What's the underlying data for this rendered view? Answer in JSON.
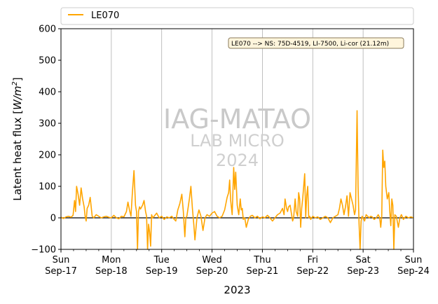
{
  "chart_data": {
    "type": "line",
    "title": "",
    "xlabel": "2023",
    "ylabel": "Latent heat flux [W/m²]",
    "ylabel_main": "Latent heat flux [",
    "ylabel_unit_w": "W/m",
    "ylabel_unit_sup": "2",
    "ylabel_close": "]",
    "ylim": [
      -100,
      600
    ],
    "yticks": [
      -100,
      0,
      100,
      200,
      300,
      400,
      500,
      600
    ],
    "xlim": [
      0,
      7
    ],
    "xticks": [
      {
        "x": 0,
        "day": "Sun",
        "date": "Sep-17"
      },
      {
        "x": 1,
        "day": "Mon",
        "date": "Sep-18"
      },
      {
        "x": 2,
        "day": "Tue",
        "date": "Sep-19"
      },
      {
        "x": 3,
        "day": "Wed",
        "date": "Sep-20"
      },
      {
        "x": 4,
        "day": "Thu",
        "date": "Sep-21"
      },
      {
        "x": 5,
        "day": "Fri",
        "date": "Sep-22"
      },
      {
        "x": 6,
        "day": "Sat",
        "date": "Sep-23"
      },
      {
        "x": 7,
        "day": "Sun",
        "date": "Sep-24"
      }
    ],
    "grid": "vertical",
    "legend_position": "top",
    "series": [
      {
        "name": "LE070",
        "color": "#ffa500",
        "points": [
          [
            0.0,
            2
          ],
          [
            0.05,
            -2
          ],
          [
            0.1,
            3
          ],
          [
            0.15,
            5
          ],
          [
            0.2,
            2
          ],
          [
            0.24,
            8
          ],
          [
            0.27,
            55
          ],
          [
            0.29,
            20
          ],
          [
            0.31,
            100
          ],
          [
            0.34,
            75
          ],
          [
            0.37,
            40
          ],
          [
            0.4,
            95
          ],
          [
            0.43,
            60
          ],
          [
            0.46,
            35
          ],
          [
            0.48,
            5
          ],
          [
            0.5,
            -10
          ],
          [
            0.52,
            30
          ],
          [
            0.55,
            40
          ],
          [
            0.58,
            65
          ],
          [
            0.62,
            5
          ],
          [
            0.65,
            0
          ],
          [
            0.7,
            10
          ],
          [
            0.75,
            5
          ],
          [
            0.8,
            0
          ],
          [
            0.85,
            3
          ],
          [
            0.9,
            5
          ],
          [
            0.95,
            2
          ],
          [
            1.0,
            0
          ],
          [
            1.05,
            8
          ],
          [
            1.1,
            0
          ],
          [
            1.15,
            -3
          ],
          [
            1.2,
            5
          ],
          [
            1.25,
            3
          ],
          [
            1.3,
            20
          ],
          [
            1.33,
            50
          ],
          [
            1.36,
            25
          ],
          [
            1.39,
            5
          ],
          [
            1.42,
            85
          ],
          [
            1.45,
            150
          ],
          [
            1.48,
            40
          ],
          [
            1.5,
            20
          ],
          [
            1.52,
            -100
          ],
          [
            1.54,
            20
          ],
          [
            1.56,
            35
          ],
          [
            1.58,
            28
          ],
          [
            1.62,
            40
          ],
          [
            1.65,
            55
          ],
          [
            1.68,
            20
          ],
          [
            1.7,
            5
          ],
          [
            1.72,
            -100
          ],
          [
            1.74,
            -20
          ],
          [
            1.76,
            -45
          ],
          [
            1.78,
            -90
          ],
          [
            1.8,
            10
          ],
          [
            1.82,
            0
          ],
          [
            1.85,
            5
          ],
          [
            1.9,
            15
          ],
          [
            1.95,
            0
          ],
          [
            2.0,
            5
          ],
          [
            2.05,
            -5
          ],
          [
            2.1,
            3
          ],
          [
            2.15,
            0
          ],
          [
            2.2,
            5
          ],
          [
            2.25,
            -5
          ],
          [
            2.28,
            -10
          ],
          [
            2.32,
            25
          ],
          [
            2.36,
            45
          ],
          [
            2.4,
            75
          ],
          [
            2.43,
            20
          ],
          [
            2.46,
            -60
          ],
          [
            2.48,
            0
          ],
          [
            2.5,
            5
          ],
          [
            2.55,
            60
          ],
          [
            2.58,
            100
          ],
          [
            2.61,
            30
          ],
          [
            2.64,
            -25
          ],
          [
            2.66,
            -70
          ],
          [
            2.7,
            0
          ],
          [
            2.74,
            25
          ],
          [
            2.78,
            5
          ],
          [
            2.82,
            -40
          ],
          [
            2.86,
            0
          ],
          [
            2.9,
            10
          ],
          [
            2.95,
            5
          ],
          [
            3.0,
            15
          ],
          [
            3.05,
            20
          ],
          [
            3.1,
            5
          ],
          [
            3.15,
            0
          ],
          [
            3.2,
            5
          ],
          [
            3.25,
            25
          ],
          [
            3.3,
            65
          ],
          [
            3.33,
            80
          ],
          [
            3.35,
            120
          ],
          [
            3.37,
            55
          ],
          [
            3.4,
            10
          ],
          [
            3.43,
            160
          ],
          [
            3.45,
            90
          ],
          [
            3.47,
            145
          ],
          [
            3.5,
            40
          ],
          [
            3.53,
            10
          ],
          [
            3.56,
            60
          ],
          [
            3.58,
            25
          ],
          [
            3.6,
            30
          ],
          [
            3.62,
            -5
          ],
          [
            3.65,
            0
          ],
          [
            3.68,
            -30
          ],
          [
            3.72,
            -5
          ],
          [
            3.76,
            5
          ],
          [
            3.8,
            8
          ],
          [
            3.85,
            0
          ],
          [
            3.9,
            5
          ],
          [
            3.95,
            -3
          ],
          [
            4.0,
            3
          ],
          [
            4.05,
            0
          ],
          [
            4.1,
            8
          ],
          [
            4.15,
            0
          ],
          [
            4.2,
            -10
          ],
          [
            4.25,
            0
          ],
          [
            4.3,
            10
          ],
          [
            4.35,
            15
          ],
          [
            4.4,
            30
          ],
          [
            4.43,
            10
          ],
          [
            4.45,
            60
          ],
          [
            4.48,
            30
          ],
          [
            4.5,
            20
          ],
          [
            4.52,
            35
          ],
          [
            4.55,
            40
          ],
          [
            4.58,
            10
          ],
          [
            4.6,
            -10
          ],
          [
            4.62,
            0
          ],
          [
            4.65,
            60
          ],
          [
            4.67,
            20
          ],
          [
            4.7,
            5
          ],
          [
            4.72,
            80
          ],
          [
            4.74,
            60
          ],
          [
            4.76,
            -30
          ],
          [
            4.78,
            30
          ],
          [
            4.8,
            60
          ],
          [
            4.82,
            100
          ],
          [
            4.84,
            140
          ],
          [
            4.86,
            0
          ],
          [
            4.88,
            70
          ],
          [
            4.9,
            100
          ],
          [
            4.92,
            0
          ],
          [
            4.94,
            5
          ],
          [
            4.96,
            -5
          ],
          [
            5.0,
            5
          ],
          [
            5.05,
            0
          ],
          [
            5.1,
            3
          ],
          [
            5.15,
            -5
          ],
          [
            5.2,
            0
          ],
          [
            5.25,
            5
          ],
          [
            5.3,
            0
          ],
          [
            5.35,
            -15
          ],
          [
            5.4,
            0
          ],
          [
            5.45,
            5
          ],
          [
            5.5,
            10
          ],
          [
            5.53,
            30
          ],
          [
            5.56,
            60
          ],
          [
            5.59,
            40
          ],
          [
            5.62,
            10
          ],
          [
            5.65,
            35
          ],
          [
            5.68,
            70
          ],
          [
            5.71,
            5
          ],
          [
            5.74,
            80
          ],
          [
            5.77,
            60
          ],
          [
            5.8,
            40
          ],
          [
            5.83,
            10
          ],
          [
            5.85,
            25
          ],
          [
            5.88,
            340
          ],
          [
            5.9,
            100
          ],
          [
            5.92,
            -20
          ],
          [
            5.94,
            -100
          ],
          [
            5.96,
            -10
          ],
          [
            5.98,
            5
          ],
          [
            6.0,
            0
          ],
          [
            6.03,
            -10
          ],
          [
            6.06,
            10
          ],
          [
            6.09,
            5
          ],
          [
            6.12,
            0
          ],
          [
            6.15,
            5
          ],
          [
            6.18,
            3
          ],
          [
            6.22,
            -5
          ],
          [
            6.26,
            0
          ],
          [
            6.3,
            10
          ],
          [
            6.33,
            0
          ],
          [
            6.35,
            -30
          ],
          [
            6.37,
            5
          ],
          [
            6.39,
            215
          ],
          [
            6.41,
            160
          ],
          [
            6.43,
            180
          ],
          [
            6.45,
            100
          ],
          [
            6.48,
            60
          ],
          [
            6.51,
            80
          ],
          [
            6.53,
            20
          ],
          [
            6.55,
            -25
          ],
          [
            6.57,
            60
          ],
          [
            6.59,
            40
          ],
          [
            6.61,
            -100
          ],
          [
            6.63,
            10
          ],
          [
            6.66,
            5
          ],
          [
            6.7,
            -30
          ],
          [
            6.73,
            0
          ],
          [
            6.76,
            10
          ],
          [
            6.8,
            -5
          ],
          [
            6.85,
            5
          ],
          [
            6.9,
            0
          ],
          [
            6.95,
            3
          ],
          [
            7.0,
            0
          ]
        ]
      }
    ],
    "zero_line": true,
    "annotation": "LE070 --> NS: 75D-4519, LI-7500, Li-cor (21.12m)",
    "watermark": [
      "IAG-MATAO",
      "LAB MICRO",
      "2024"
    ]
  },
  "colors": {
    "line": "#ffa500",
    "grid": "#b0b0b0",
    "annotation_bg": "#fff5dc",
    "annotation_border": "#8a7a5a",
    "watermark": "#c9c9c9"
  }
}
